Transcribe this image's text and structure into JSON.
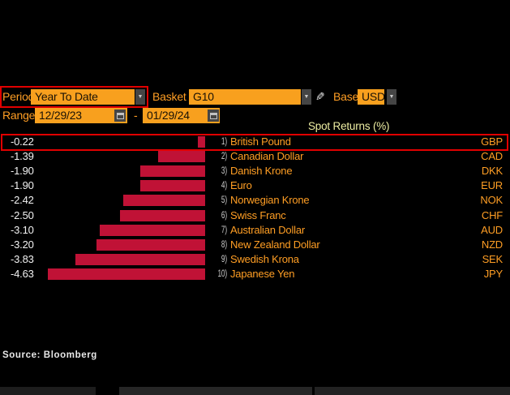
{
  "controls": {
    "period": {
      "label": "Period",
      "value": "Year To Date"
    },
    "basket": {
      "label": "Basket",
      "value": "G10"
    },
    "base": {
      "label": "Base",
      "value": "USD"
    },
    "range": {
      "label": "Range",
      "start": "12/29/23",
      "separator": "-",
      "end": "01/29/24"
    },
    "dropdown_arrow": "▼"
  },
  "chart_data": {
    "type": "bar",
    "orientation": "horizontal",
    "title": "Spot Returns (%)",
    "xlim": [
      -5,
      0
    ],
    "bar_color": "#c01236",
    "highlighted_row": 0,
    "categories": [
      "British Pound",
      "Canadian Dollar",
      "Danish Krone",
      "Euro",
      "Norwegian Krone",
      "Swiss Franc",
      "Australian Dollar",
      "New Zealand Dollar",
      "Swedish Krona",
      "Japanese Yen"
    ],
    "codes": [
      "GBP",
      "CAD",
      "DKK",
      "EUR",
      "NOK",
      "CHF",
      "AUD",
      "NZD",
      "SEK",
      "JPY"
    ],
    "row_numbers": [
      "1)",
      "2)",
      "3)",
      "4)",
      "5)",
      "6)",
      "7)",
      "8)",
      "9)",
      "10)"
    ],
    "values": [
      -0.22,
      -1.39,
      -1.9,
      -1.9,
      -2.42,
      -2.5,
      -3.1,
      -3.2,
      -3.83,
      -4.63
    ],
    "value_labels": [
      "-0.22",
      "-1.39",
      "-1.90",
      "-1.90",
      "-2.42",
      "-2.50",
      "-3.10",
      "-3.20",
      "-3.83",
      "-4.63"
    ]
  },
  "source": "Source: Bloomberg",
  "colors": {
    "background": "#000000",
    "field_amber": "#f8a01e",
    "label_amber": "#ff9e24",
    "bar_crimson": "#c01236",
    "annotation_red": "#e10000",
    "title_yellow": "#ededa2",
    "value_white": "#f2f2f2"
  }
}
